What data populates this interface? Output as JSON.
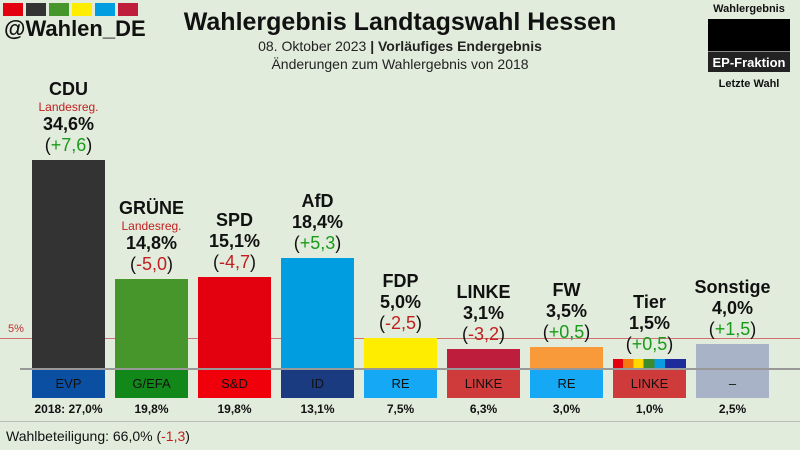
{
  "header": {
    "handle": "@Wahlen_DE",
    "title": "Wahlergebnis Landtagswahl Hessen",
    "date": "08. Oktober 2023",
    "separator": "|",
    "status": "Vorläufiges Endergebnis",
    "subtitle": "Änderungen zum Wahlergebnis von 2018",
    "logo_colors": [
      "#e3000f",
      "#333333",
      "#46962b",
      "#ffed00",
      "#009ee0",
      "#be1e3c"
    ]
  },
  "legend": {
    "top": "Wahlergebnis",
    "middle": "EP-Fraktion",
    "bottom": "Letzte Wahl"
  },
  "chart_data": {
    "type": "bar",
    "title": "Wahlergebnis Landtagswahl Hessen",
    "threshold": 5,
    "threshold_label": "5%",
    "ylim": [
      0,
      35
    ],
    "parties": [
      {
        "name": "CDU",
        "note": "Landesreg.",
        "value": 34.6,
        "value_label": "34,6%",
        "change": 7.6,
        "change_label": "+7,6",
        "prev_label": "2018: 27,0%",
        "ep": "EVP",
        "color": "#333333",
        "ep_color": "#0b4fa3"
      },
      {
        "name": "GRÜNE",
        "note": "Landesreg.",
        "value": 14.8,
        "value_label": "14,8%",
        "change": -5.0,
        "change_label": "-5,0",
        "prev_label": "19,8%",
        "ep": "G/EFA",
        "color": "#46962b",
        "ep_color": "#13881a"
      },
      {
        "name": "SPD",
        "note": "",
        "value": 15.1,
        "value_label": "15,1%",
        "change": -4.7,
        "change_label": "-4,7",
        "prev_label": "19,8%",
        "ep": "S&D",
        "color": "#e3000f",
        "ep_color": "#f0000a"
      },
      {
        "name": "AfD",
        "note": "",
        "value": 18.4,
        "value_label": "18,4%",
        "change": 5.3,
        "change_label": "+5,3",
        "prev_label": "13,1%",
        "ep": "ID",
        "color": "#009ee0",
        "ep_color": "#1a3b80"
      },
      {
        "name": "FDP",
        "note": "",
        "value": 5.0,
        "value_label": "5,0%",
        "change": -2.5,
        "change_label": "-2,5",
        "prev_label": "7,5%",
        "ep": "RE",
        "color": "#ffed00",
        "ep_color": "#14a8f5"
      },
      {
        "name": "LINKE",
        "note": "",
        "value": 3.1,
        "value_label": "3,1%",
        "change": -3.2,
        "change_label": "-3,2",
        "prev_label": "6,3%",
        "ep": "LINKE",
        "color": "#be1e3c",
        "ep_color": "#cf3b3b"
      },
      {
        "name": "FW",
        "note": "",
        "value": 3.5,
        "value_label": "3,5%",
        "change": 0.5,
        "change_label": "+0,5",
        "prev_label": "3,0%",
        "ep": "RE",
        "color": "#f89a3a",
        "ep_color": "#14a8f5"
      },
      {
        "name": "Tier",
        "note": "",
        "value": 1.5,
        "value_label": "1,5%",
        "change": 0.5,
        "change_label": "+0,5",
        "prev_label": "1,0%",
        "ep": "LINKE",
        "color": "rainbow",
        "ep_color": "#cf3b3b"
      },
      {
        "name": "Sonstige",
        "note": "",
        "value": 4.0,
        "value_label": "4,0%",
        "change": 1.5,
        "change_label": "+1,5",
        "prev_label": "2,5%",
        "ep": "–",
        "color": "#a9b3c8",
        "ep_color": "#a9b3c8"
      }
    ]
  },
  "footer": {
    "turnout_label": "Wahlbeteiligung: 66,0%",
    "turnout_change": "-1,3"
  }
}
